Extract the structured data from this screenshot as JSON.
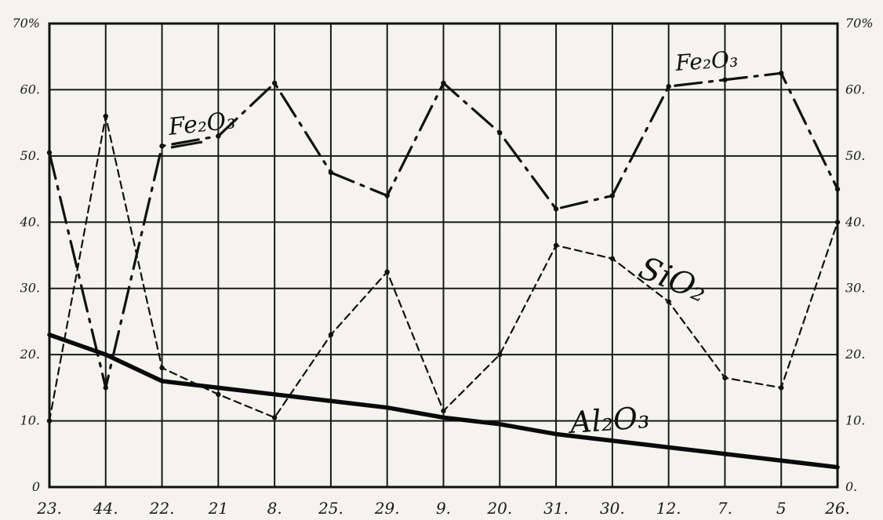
{
  "chart_data": {
    "type": "line",
    "title": "",
    "xlabel": "",
    "ylabel": "",
    "ylim": [
      0,
      70
    ],
    "grid": true,
    "categories": [
      "23.",
      "44.",
      "22.",
      "21",
      "8.",
      "25.",
      "29.",
      "9.",
      "20.",
      "31.",
      "30.",
      "12.",
      "7.",
      "5",
      "26."
    ],
    "y_ticks_left": [
      "70%",
      "60.",
      "50.",
      "40.",
      "30.",
      "20.",
      "10.",
      "0"
    ],
    "y_ticks_right": [
      "70%",
      "60.",
      "50.",
      "40.",
      "30.",
      "20.",
      "10.",
      "0."
    ],
    "series": [
      {
        "name": "Fe₂O₃",
        "labels": [
          "Fe₂O₃",
          "Fe₂O₃"
        ],
        "style": "dash-dot",
        "values": [
          50.5,
          15,
          51.5,
          53,
          61,
          47.5,
          44,
          61,
          53.5,
          42,
          44,
          60.5,
          61.5,
          62.5,
          45
        ]
      },
      {
        "name": "SiO₂",
        "style": "dashed",
        "values": [
          10,
          56,
          18,
          14,
          10.5,
          23,
          32.5,
          11.5,
          20,
          36.5,
          34.5,
          28,
          16.5,
          15,
          40
        ]
      },
      {
        "name": "Al₂O₃",
        "style": "solid-thick",
        "values": [
          23,
          20,
          16,
          15,
          14,
          13,
          12,
          10.5,
          9.5,
          8,
          7,
          6,
          5,
          4,
          3
        ]
      }
    ]
  }
}
